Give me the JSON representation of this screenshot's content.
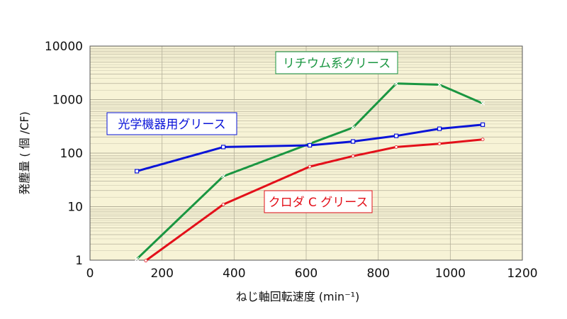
{
  "chart_data": {
    "type": "line",
    "xlabel": "ねじ軸回転速度 (min⁻¹)",
    "ylabel": "発塵量 ( 個 /CF)",
    "xlim": [
      0,
      1200
    ],
    "ylim": [
      1,
      10000
    ],
    "yscale": "log",
    "x_ticks": [
      "0",
      "200",
      "400",
      "600",
      "800",
      "1000",
      "1200"
    ],
    "y_ticks": [
      "1",
      "10",
      "100",
      "1000",
      "10000"
    ],
    "grid": true,
    "colors": {
      "plot_bg": "#f7f3d6",
      "grid": "#b5b09a"
    },
    "series": [
      {
        "name": "リチウム系グリース",
        "color": "#1a9641",
        "marker": "x",
        "x": [
          130,
          370,
          610,
          730,
          850,
          970,
          1090
        ],
        "y": [
          1.05,
          37,
          150,
          300,
          2000,
          1900,
          850
        ]
      },
      {
        "name": "光学機器用グリース",
        "color": "#0a14d8",
        "marker": "square",
        "x": [
          130,
          370,
          610,
          730,
          850,
          970,
          1090
        ],
        "y": [
          46,
          130,
          140,
          165,
          210,
          285,
          340
        ]
      },
      {
        "name": "クロダ C グリース",
        "color": "#e3101a",
        "marker": "dot",
        "x": [
          155,
          370,
          610,
          730,
          850,
          970,
          1090
        ],
        "y": [
          0.98,
          11,
          56,
          88,
          130,
          150,
          180
        ]
      }
    ]
  }
}
